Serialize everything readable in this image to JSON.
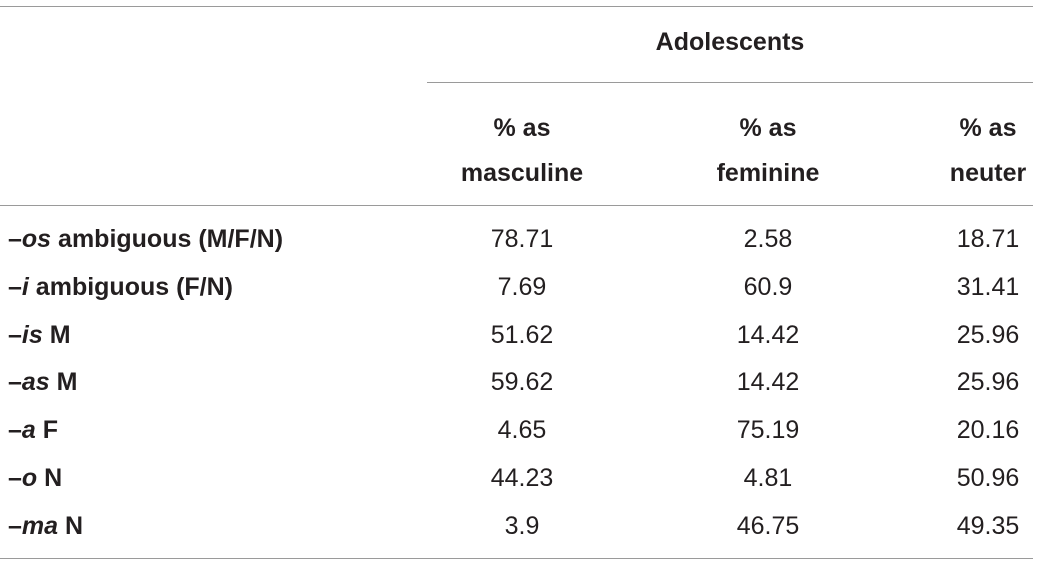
{
  "table": {
    "group_header": "Adolescents",
    "columns": [
      {
        "line1": "% as",
        "line2": "masculine"
      },
      {
        "line1": "% as",
        "line2": "feminine"
      },
      {
        "line1": "% as",
        "line2": "neuter"
      }
    ],
    "rows": [
      {
        "dash": "–",
        "ending": "os",
        "rest": " ambiguous (M/F/N)",
        "masculine": "78.71",
        "feminine": "2.58",
        "neuter": "18.71"
      },
      {
        "dash": "–",
        "ending": "i",
        "rest": " ambiguous (F/N)",
        "masculine": "7.69",
        "feminine": "60.9",
        "neuter": "31.41"
      },
      {
        "dash": "–",
        "ending": "is",
        "rest": " M",
        "masculine": "51.62",
        "feminine": "14.42",
        "neuter": "25.96"
      },
      {
        "dash": "–",
        "ending": "as",
        "rest": " M",
        "masculine": "59.62",
        "feminine": "14.42",
        "neuter": "25.96"
      },
      {
        "dash": "–",
        "ending": "a",
        "rest": " F",
        "masculine": "4.65",
        "feminine": "75.19",
        "neuter": "20.16"
      },
      {
        "dash": "–",
        "ending": "o",
        "rest": " N",
        "masculine": "44.23",
        "feminine": "4.81",
        "neuter": "50.96"
      },
      {
        "dash": "–",
        "ending": "ma",
        "rest": " N",
        "masculine": "3.9",
        "feminine": "46.75",
        "neuter": "49.35"
      }
    ]
  }
}
